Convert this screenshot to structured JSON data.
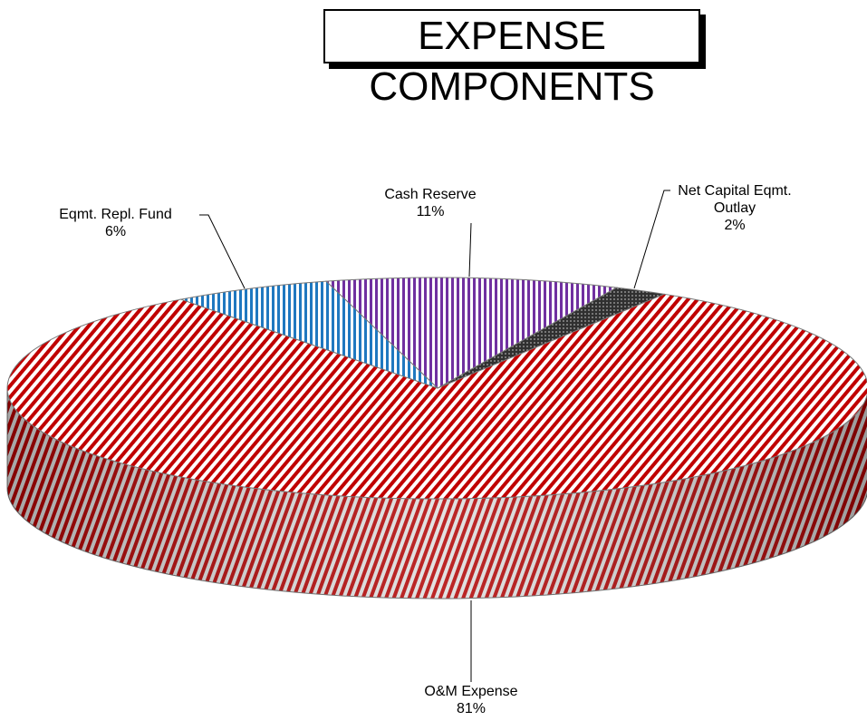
{
  "chart_data": {
    "type": "pie3d",
    "title": "EXPENSE COMPONENTS",
    "categories": [
      "Cash Reserve",
      "Net Capital Eqmt. Outlay",
      "O&M Expense",
      "Eqmt. Repl. Fund"
    ],
    "values": [
      11,
      2,
      81,
      6
    ],
    "value_labels": [
      "11%",
      "2%",
      "81%",
      "6%"
    ],
    "colors": [
      "#7030a0",
      "#303030",
      "#c00000",
      "#1f78c0"
    ]
  }
}
